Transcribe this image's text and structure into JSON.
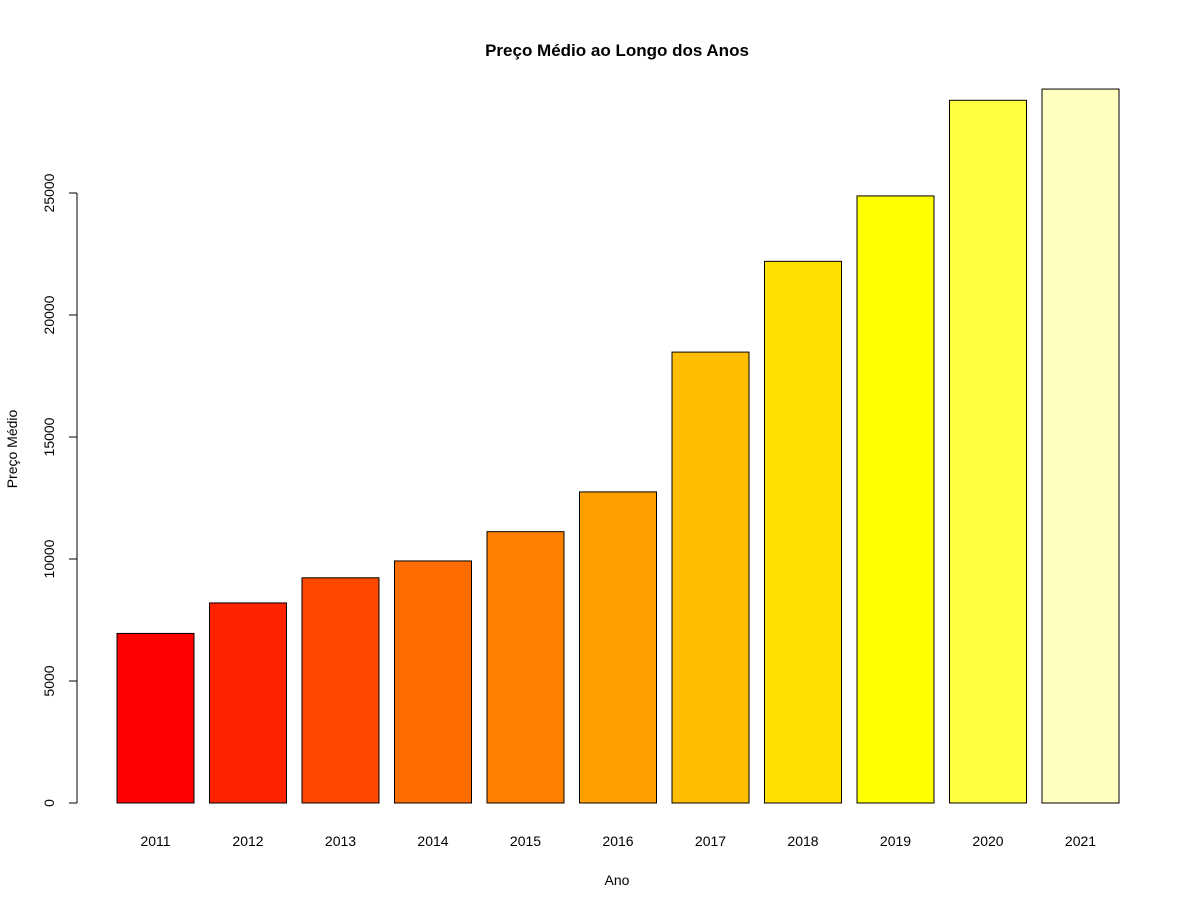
{
  "chart_data": {
    "type": "bar",
    "title": "Preço Médio ao Longo dos Anos",
    "xlabel": "Ano",
    "ylabel": "Preço Médio",
    "categories": [
      "2011",
      "2012",
      "2013",
      "2014",
      "2015",
      "2016",
      "2017",
      "2018",
      "2019",
      "2020",
      "2021"
    ],
    "values": [
      6950,
      8200,
      9230,
      9920,
      11120,
      12750,
      18480,
      22200,
      24880,
      28800,
      29260
    ],
    "colors": [
      "#FF0000",
      "#FF2400",
      "#FF4900",
      "#FF6D00",
      "#FF8000",
      "#FF9F00",
      "#FFBF00",
      "#FFDF00",
      "#FFFF00",
      "#FFFF40",
      "#FFFFBF"
    ],
    "yticks": [
      0,
      5000,
      10000,
      15000,
      20000,
      25000
    ],
    "ytick_labels": [
      "0",
      "5000",
      "10000",
      "15000",
      "20000",
      "25000"
    ],
    "ylim": [
      0,
      29260
    ],
    "grid": false,
    "legend": false
  }
}
